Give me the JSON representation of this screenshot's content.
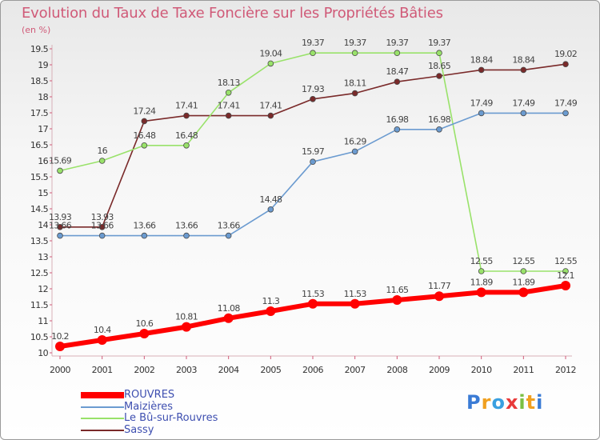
{
  "chart_data": {
    "type": "line",
    "title": "Evolution du Taux de Taxe Foncière sur les Propriétés Bâties",
    "unit_label": "(en %)",
    "xlabel": "",
    "ylabel": "",
    "x": [
      "2000",
      "2001",
      "2002",
      "2003",
      "2004",
      "2005",
      "2006",
      "2007",
      "2008",
      "2009",
      "2010",
      "2011",
      "2012"
    ],
    "ylim": [
      10,
      19.5
    ],
    "yticks": [
      "10",
      "10.5",
      "11",
      "11.5",
      "12",
      "12.5",
      "13",
      "13.5",
      "14",
      "14.5",
      "15",
      "15.5",
      "16",
      "16.5",
      "17",
      "17.5",
      "18",
      "18.5",
      "19",
      "19.5"
    ],
    "grid": false,
    "legend_position": "bottom-left",
    "series": [
      {
        "name": "ROUVRES",
        "color": "#ff0000",
        "values": [
          10.2,
          10.4,
          10.6,
          10.81,
          11.08,
          11.3,
          11.53,
          11.53,
          11.65,
          11.77,
          11.89,
          11.89,
          12.1
        ],
        "labels": [
          "10.2",
          "10.4",
          "10.6",
          "10.81",
          "11.08",
          "11.3",
          "11.53",
          "11.53",
          "11.65",
          "11.77",
          "11.89",
          "11.89",
          "12.1"
        ]
      },
      {
        "name": "Maizières",
        "color": "#6b9bd0",
        "values": [
          13.66,
          13.66,
          13.66,
          13.66,
          13.66,
          14.48,
          15.97,
          16.29,
          16.98,
          16.98,
          17.49,
          17.49,
          17.49
        ],
        "labels": [
          "13.66",
          "13.66",
          "13.66",
          "13.66",
          "13.66",
          "14.48",
          "15.97",
          "16.29",
          "16.98",
          "16.98",
          "17.49",
          "17.49",
          "17.49"
        ]
      },
      {
        "name": "Le Bû-sur-Rouvres",
        "color": "#99e26a",
        "values": [
          15.69,
          16,
          16.48,
          16.48,
          18.13,
          19.04,
          19.37,
          19.37,
          19.37,
          19.37,
          12.55,
          12.55,
          12.55
        ],
        "labels": [
          "15.69",
          "16",
          "16.48",
          "16.48",
          "18.13",
          "19.04",
          "19.37",
          "19.37",
          "19.37",
          "19.37",
          "12.55",
          "12.55",
          "12.55"
        ]
      },
      {
        "name": "Sassy",
        "color": "#7a2a2a",
        "values": [
          13.93,
          13.93,
          17.24,
          17.41,
          17.41,
          17.41,
          17.93,
          18.11,
          18.47,
          18.65,
          18.84,
          18.84,
          19.02
        ],
        "labels": [
          "13.93",
          "13.93",
          "17.24",
          "17.41",
          "17.41",
          "17.41",
          "17.93",
          "18.11",
          "18.47",
          "18.65",
          "18.84",
          "18.84",
          "19.02"
        ]
      }
    ]
  },
  "brand": {
    "letters": [
      {
        "ch": "P",
        "color": "#3a7bd5"
      },
      {
        "ch": "r",
        "color": "#f0a020"
      },
      {
        "ch": "o",
        "color": "#3aa0e0"
      },
      {
        "ch": "x",
        "color": "#e83a3a"
      },
      {
        "ch": "i",
        "color": "#7bc043"
      },
      {
        "ch": "t",
        "color": "#f0a020"
      },
      {
        "ch": "i",
        "color": "#3a7bd5"
      }
    ]
  }
}
